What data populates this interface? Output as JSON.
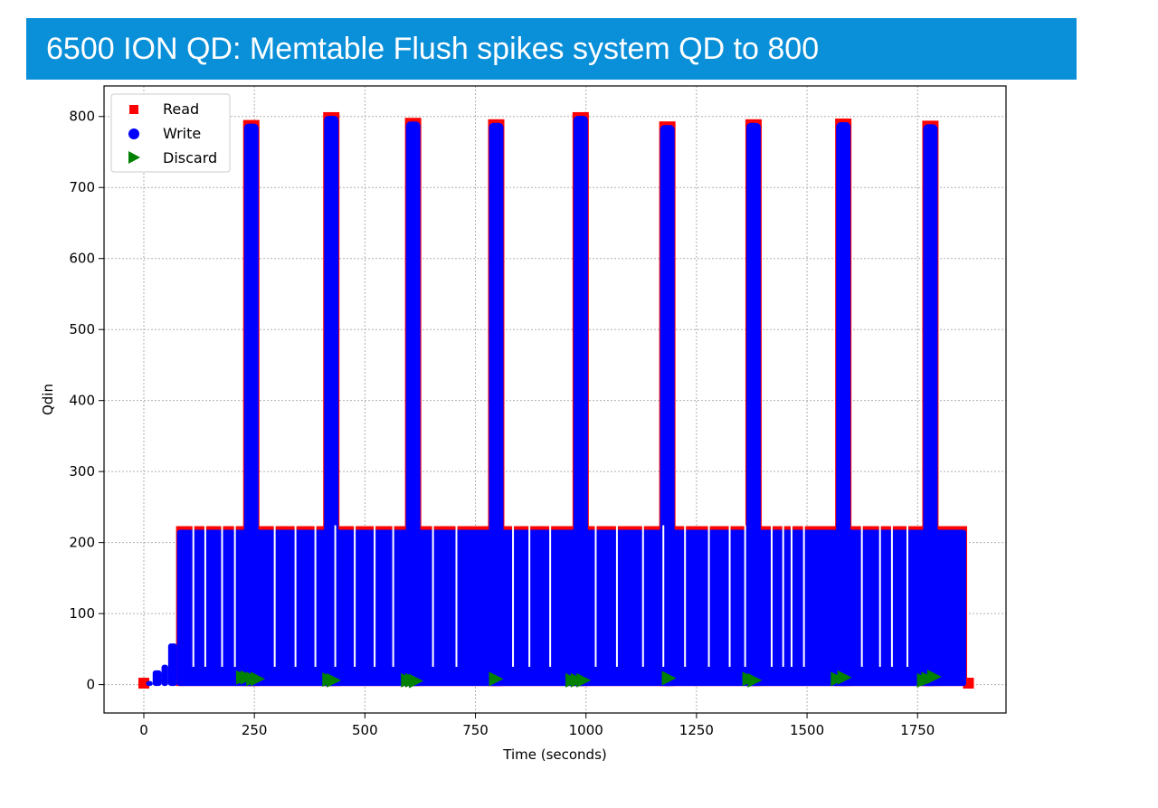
{
  "header": {
    "title": "6500 ION QD: Memtable Flush spikes system QD to 800",
    "background_color": "#0a8fd9"
  },
  "chart_data": {
    "type": "scatter",
    "title": "",
    "xlabel": "Time (seconds)",
    "ylabel": "Qdin",
    "xlim": [
      -90,
      1950
    ],
    "ylim": [
      -40,
      843
    ],
    "x_ticks": [
      0,
      250,
      500,
      750,
      1000,
      1250,
      1500,
      1750
    ],
    "y_ticks": [
      0,
      100,
      200,
      300,
      400,
      500,
      600,
      700,
      800
    ],
    "x_tick_labels": [
      "0",
      "250",
      "500",
      "750",
      "1000",
      "1250",
      "1500",
      "1750"
    ],
    "y_tick_labels": [
      "0",
      "100",
      "200",
      "300",
      "400",
      "500",
      "600",
      "700",
      "800"
    ],
    "grid": true,
    "legend_position": "upper-left",
    "legend": [
      {
        "name": "Read",
        "color": "#ff0000",
        "marker": "square"
      },
      {
        "name": "Write",
        "color": "#0000ff",
        "marker": "circle"
      },
      {
        "name": "Discard",
        "color": "#008000",
        "marker": "triangle-right"
      }
    ],
    "series": [
      {
        "name": "Write",
        "color": "#0000ff",
        "base_blocks": [
          {
            "x_start": 5,
            "x_end": 20,
            "level": 5
          },
          {
            "x_start": 20,
            "x_end": 40,
            "level": 20
          },
          {
            "x_start": 40,
            "x_end": 55,
            "level": 28
          },
          {
            "x_start": 55,
            "x_end": 75,
            "level": 58
          },
          {
            "x_start": 75,
            "x_end": 1860,
            "level": 218
          }
        ],
        "spikes": [
          {
            "x": 243,
            "y": 790
          },
          {
            "x": 424,
            "y": 801
          },
          {
            "x": 609,
            "y": 793
          },
          {
            "x": 797,
            "y": 791
          },
          {
            "x": 988,
            "y": 801
          },
          {
            "x": 1184,
            "y": 788
          },
          {
            "x": 1379,
            "y": 791
          },
          {
            "x": 1582,
            "y": 792
          },
          {
            "x": 1779,
            "y": 789
          }
        ]
      },
      {
        "name": "Read",
        "color": "#ff0000",
        "edge_points": [
          {
            "x": 0,
            "y": 2
          },
          {
            "x": 1865,
            "y": 2
          }
        ]
      },
      {
        "name": "Discard",
        "color": "#008000",
        "points": [
          {
            "x": 225,
            "y": 10
          },
          {
            "x": 235,
            "y": 10
          },
          {
            "x": 248,
            "y": 8
          },
          {
            "x": 258,
            "y": 8
          },
          {
            "x": 420,
            "y": 7
          },
          {
            "x": 430,
            "y": 6
          },
          {
            "x": 598,
            "y": 6
          },
          {
            "x": 608,
            "y": 6
          },
          {
            "x": 616,
            "y": 5
          },
          {
            "x": 797,
            "y": 8
          },
          {
            "x": 970,
            "y": 6
          },
          {
            "x": 982,
            "y": 6
          },
          {
            "x": 995,
            "y": 6
          },
          {
            "x": 1188,
            "y": 9
          },
          {
            "x": 1370,
            "y": 8
          },
          {
            "x": 1382,
            "y": 6
          },
          {
            "x": 1570,
            "y": 8
          },
          {
            "x": 1585,
            "y": 10
          },
          {
            "x": 1765,
            "y": 6
          },
          {
            "x": 1775,
            "y": 8
          },
          {
            "x": 1788,
            "y": 11
          }
        ]
      }
    ],
    "gaps_in_write_blocks": [
      112,
      139,
      177,
      206,
      296,
      343,
      388,
      433,
      477,
      522,
      564,
      654,
      707,
      835,
      872,
      919,
      1022,
      1070,
      1129,
      1175,
      1224,
      1278,
      1325,
      1360,
      1420,
      1446,
      1465,
      1493,
      1624,
      1665,
      1692,
      1727
    ]
  }
}
